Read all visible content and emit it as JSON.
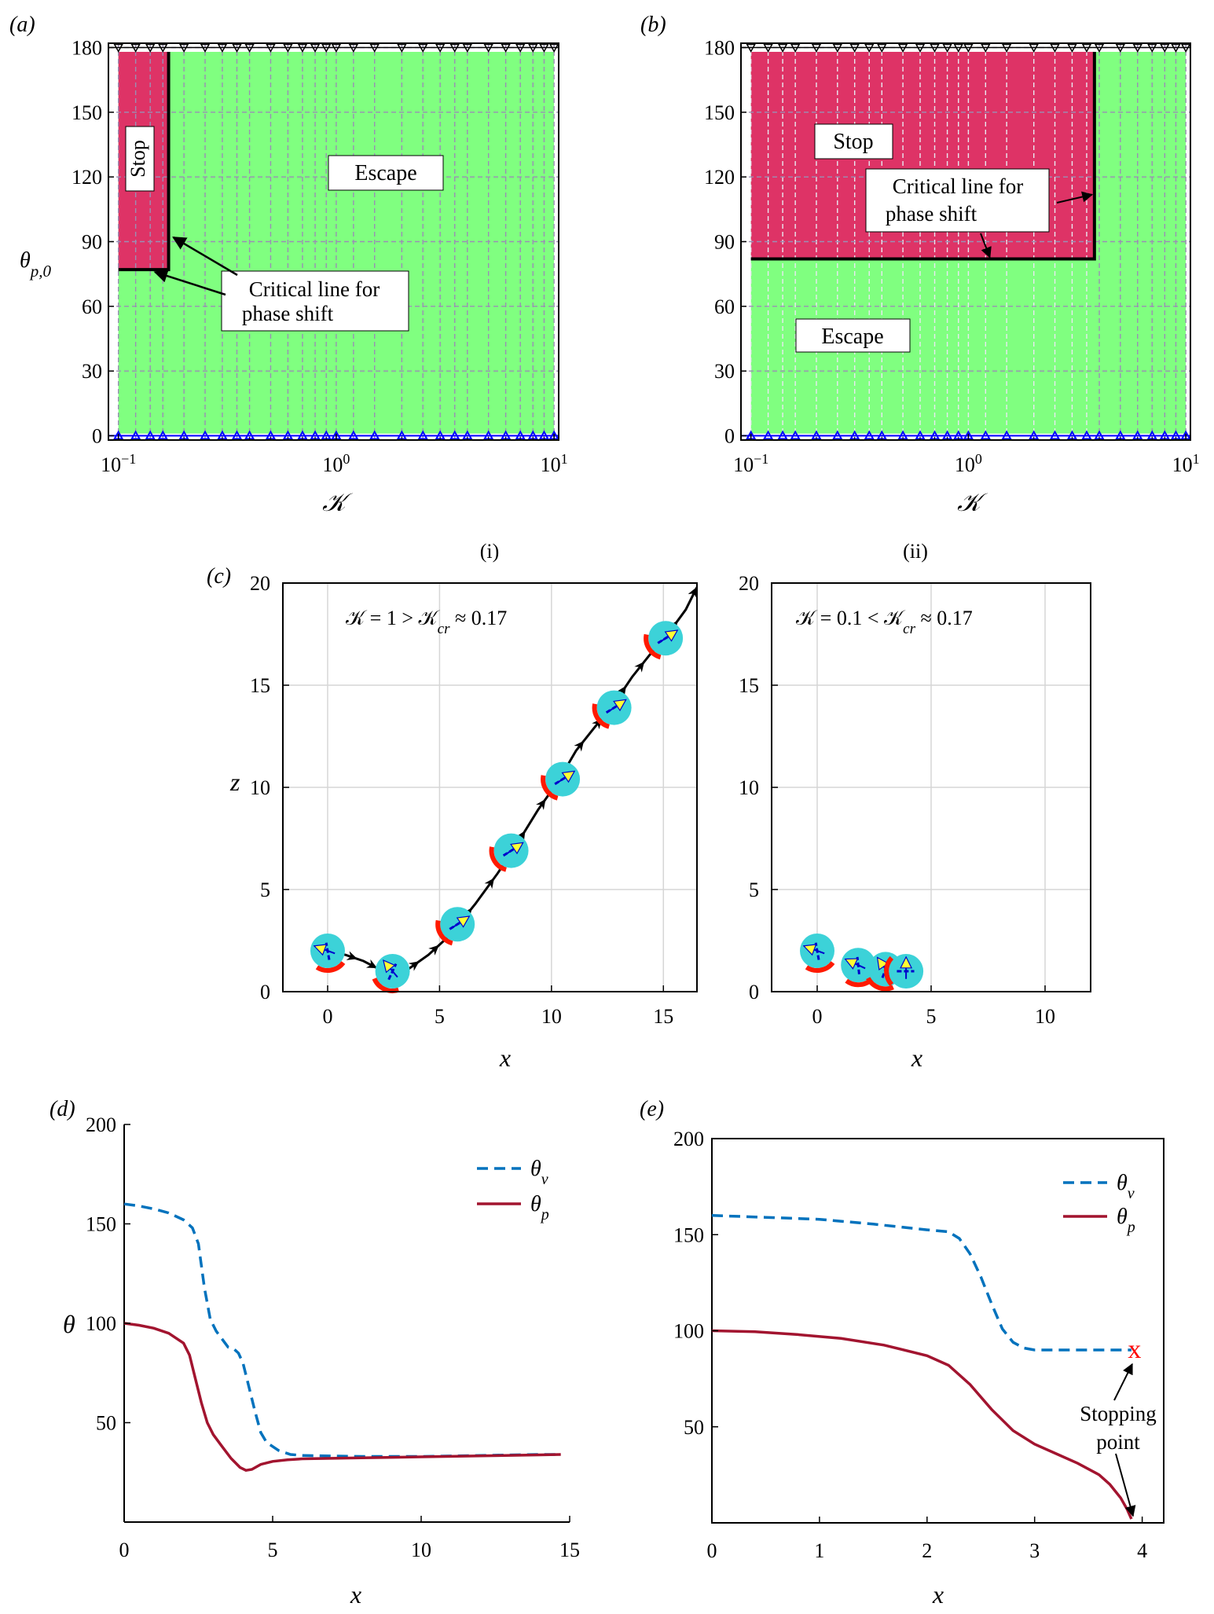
{
  "colors": {
    "stop": "#de3366",
    "escape": "#80ff80",
    "grid_dashed": "#9a8fb4",
    "particle": "#3cd2d8",
    "cap": "#ff1a00",
    "arrow_v": "#ffff33",
    "arrow_p": "#0000cc",
    "theta_v": "#0072bd",
    "theta_p": "#a2142f",
    "marker_red": "#ff0000",
    "triangle_top": "#000000",
    "triangle_bottom": "#0000ff"
  },
  "chart_data": [
    {
      "id": "a",
      "panel_label": "(a)",
      "type": "heatmap",
      "xscale": "log",
      "xlim": [
        0.09,
        10.5
      ],
      "ylim": [
        -2,
        182
      ],
      "xlabel": "𝒦",
      "ylabel": "θp,0",
      "xticks": [
        {
          "v": 0.1,
          "base": "10",
          "exp": "−1"
        },
        {
          "v": 1,
          "base": "10",
          "exp": "0"
        },
        {
          "v": 10,
          "base": "10",
          "exp": "1"
        }
      ],
      "yticks": [
        0,
        30,
        60,
        90,
        120,
        150,
        180
      ],
      "grid_x": [
        0.1,
        0.12,
        0.14,
        0.16,
        0.2,
        0.25,
        0.3,
        0.35,
        0.4,
        0.5,
        0.6,
        0.7,
        0.8,
        0.9,
        1,
        1.2,
        1.5,
        2,
        2.5,
        3,
        3.5,
        4,
        5,
        6,
        7,
        8,
        9,
        10
      ],
      "grid_y": [
        0,
        30,
        60,
        90,
        120,
        150,
        180
      ],
      "stop_region": {
        "k_min": 0.1,
        "k_max": 0.17,
        "theta_min": 77,
        "theta_max": 178
      },
      "critical_line": [
        [
          0.1,
          77
        ],
        [
          0.17,
          77
        ],
        [
          0.17,
          178
        ]
      ],
      "stop_label": "Stop",
      "stop_label_rotated": true,
      "escape_label": "Escape",
      "critical_label": [
        "Critical line for",
        "phase shift"
      ],
      "critical_arrow_targets": [
        [
          0.17,
          92
        ],
        [
          0.14,
          77
        ]
      ],
      "triangles_top_k": [
        0.1,
        0.12,
        0.14,
        0.16,
        0.2,
        0.25,
        0.3,
        0.35,
        0.4,
        0.5,
        0.6,
        0.7,
        0.8,
        0.9,
        1,
        1.2,
        1.5,
        2,
        2.5,
        3,
        3.5,
        4,
        5,
        6,
        7,
        8,
        9,
        10
      ],
      "triangles_bottom_k": [
        0.1,
        0.12,
        0.14,
        0.16,
        0.2,
        0.25,
        0.3,
        0.35,
        0.4,
        0.5,
        0.6,
        0.7,
        0.8,
        0.9,
        1,
        1.2,
        1.5,
        2,
        2.5,
        3,
        3.5,
        4,
        5,
        6,
        7,
        8,
        9,
        10
      ]
    },
    {
      "id": "b",
      "panel_label": "(b)",
      "type": "heatmap",
      "xscale": "log",
      "xlim": [
        0.09,
        10.5
      ],
      "ylim": [
        -2,
        182
      ],
      "xlabel": "𝒦",
      "ylabel": "",
      "xticks": [
        {
          "v": 0.1,
          "base": "10",
          "exp": "−1"
        },
        {
          "v": 1,
          "base": "10",
          "exp": "0"
        },
        {
          "v": 10,
          "base": "10",
          "exp": "1"
        }
      ],
      "yticks": [
        0,
        30,
        60,
        90,
        120,
        150,
        180
      ],
      "grid_x": [
        0.1,
        0.12,
        0.14,
        0.16,
        0.2,
        0.25,
        0.3,
        0.35,
        0.4,
        0.5,
        0.6,
        0.7,
        0.8,
        0.9,
        1,
        1.2,
        1.5,
        2,
        2.5,
        3,
        3.5,
        4,
        5,
        6,
        7,
        8,
        9,
        10
      ],
      "grid_y": [
        0,
        30,
        60,
        90,
        120,
        150,
        180
      ],
      "stop_region": {
        "k_min": 0.1,
        "k_max": 3.8,
        "theta_min": 82,
        "theta_max": 178
      },
      "critical_line": [
        [
          0.1,
          82
        ],
        [
          3.8,
          82
        ],
        [
          3.8,
          178
        ]
      ],
      "stop_label": "Stop",
      "stop_label_rotated": false,
      "escape_label": "Escape",
      "critical_label": [
        "Critical line for",
        "phase shift"
      ],
      "critical_arrow_targets": [
        [
          3.8,
          114
        ],
        [
          0.9,
          82
        ]
      ],
      "triangles_top_k": [
        0.1,
        0.12,
        0.14,
        0.16,
        0.2,
        0.25,
        0.3,
        0.35,
        0.4,
        0.5,
        0.6,
        0.7,
        0.8,
        0.9,
        1,
        1.2,
        1.5,
        2,
        2.5,
        3,
        3.5,
        4,
        5,
        6,
        7,
        8,
        9,
        10
      ],
      "triangles_bottom_k": [
        0.1,
        0.12,
        0.14,
        0.16,
        0.2,
        0.25,
        0.3,
        0.35,
        0.4,
        0.5,
        0.6,
        0.7,
        0.8,
        0.9,
        1,
        1.2,
        1.5,
        2,
        2.5,
        3,
        3.5,
        4,
        5,
        6,
        7,
        8,
        9,
        10
      ]
    },
    {
      "id": "c_i",
      "panel_label": "(c)",
      "subtitle": "(i)",
      "type": "scatter",
      "xlim": [
        -2,
        16.5
      ],
      "ylim": [
        0,
        20
      ],
      "xlabel": "x",
      "ylabel": "z",
      "xticks": [
        0,
        5,
        10,
        15
      ],
      "yticks": [
        0,
        5,
        10,
        15,
        20
      ],
      "annotation": "𝒦 = 1 > 𝒦cr ≈ 0.17",
      "trajectory": [
        [
          0,
          2.0
        ],
        [
          0.8,
          1.8
        ],
        [
          1.6,
          1.5
        ],
        [
          2.3,
          1.1
        ],
        [
          2.9,
          0.9
        ],
        [
          3.6,
          1.1
        ],
        [
          4.5,
          1.8
        ],
        [
          5.5,
          2.8
        ],
        [
          6.6,
          4.3
        ],
        [
          7.6,
          5.8
        ],
        [
          8.5,
          7.3
        ],
        [
          9.4,
          8.9
        ],
        [
          10.3,
          10.3
        ],
        [
          11.1,
          11.8
        ],
        [
          11.9,
          12.9
        ],
        [
          12.8,
          14.1
        ],
        [
          13.6,
          15.4
        ],
        [
          14.4,
          16.5
        ],
        [
          15.2,
          17.5
        ],
        [
          16.0,
          18.7
        ],
        [
          16.5,
          19.8
        ]
      ],
      "trajectory_arrow_x": [
        1.1,
        2.0,
        3.9,
        4.8,
        6.3,
        7.3,
        8.7,
        9.6,
        11.3,
        12.1,
        13.2,
        14.0,
        15.5,
        16.4
      ],
      "particles": [
        {
          "x": 0,
          "z": 2.0,
          "theta_v": 160,
          "theta_p": 100
        },
        {
          "x": 2.9,
          "z": 1.0,
          "theta_v": 130,
          "theta_p": 65
        },
        {
          "x": 5.8,
          "z": 3.3,
          "theta_v": 34,
          "theta_p": 32
        },
        {
          "x": 8.2,
          "z": 6.9,
          "theta_v": 34,
          "theta_p": 32
        },
        {
          "x": 10.5,
          "z": 10.4,
          "theta_v": 34,
          "theta_p": 32
        },
        {
          "x": 12.8,
          "z": 13.9,
          "theta_v": 34,
          "theta_p": 32
        },
        {
          "x": 15.1,
          "z": 17.3,
          "theta_v": 34,
          "theta_p": 32
        }
      ]
    },
    {
      "id": "c_ii",
      "panel_label": "",
      "subtitle": "(ii)",
      "type": "scatter",
      "xlim": [
        -2,
        12
      ],
      "ylim": [
        0,
        20
      ],
      "xlabel": "x",
      "ylabel": "",
      "xticks": [
        0,
        5,
        10
      ],
      "yticks": [
        0,
        5,
        10,
        15,
        20
      ],
      "annotation": "𝒦 = 0.1 < 𝒦cr ≈ 0.17",
      "particles": [
        {
          "x": 0,
          "z": 2.0,
          "theta_v": 160,
          "theta_p": 100
        },
        {
          "x": 1.8,
          "z": 1.3,
          "theta_v": 155,
          "theta_p": 96
        },
        {
          "x": 3.0,
          "z": 1.1,
          "theta_v": 125,
          "theta_p": 70
        },
        {
          "x": 3.9,
          "z": 1.0,
          "theta_v": 90,
          "theta_p": 0
        }
      ]
    },
    {
      "id": "d",
      "panel_label": "(d)",
      "type": "line",
      "xlim": [
        0,
        15
      ],
      "ylim": [
        0,
        200
      ],
      "xlabel": "x",
      "ylabel": "θ",
      "xticks": [
        0,
        5,
        10,
        15
      ],
      "yticks": [
        50,
        100,
        150,
        200
      ],
      "legend": [
        "θv",
        "θp"
      ],
      "series": [
        {
          "name": "theta_v",
          "style": "dashed",
          "points": [
            [
              0,
              160
            ],
            [
              0.5,
              159
            ],
            [
              1,
              157.5
            ],
            [
              1.5,
              155.5
            ],
            [
              2,
              152
            ],
            [
              2.3,
              148
            ],
            [
              2.5,
              140
            ],
            [
              2.7,
              118
            ],
            [
              2.9,
              102
            ],
            [
              3.1,
              96
            ],
            [
              3.3,
              92
            ],
            [
              3.5,
              88
            ],
            [
              3.7,
              87
            ],
            [
              3.85,
              85
            ],
            [
              4.0,
              80
            ],
            [
              4.2,
              68
            ],
            [
              4.4,
              56
            ],
            [
              4.6,
              45
            ],
            [
              4.8,
              40
            ],
            [
              5.2,
              36
            ],
            [
              5.6,
              34
            ],
            [
              6,
              33.5
            ],
            [
              8,
              33
            ],
            [
              10,
              33
            ],
            [
              12,
              33.5
            ],
            [
              14,
              34
            ],
            [
              14.7,
              34
            ]
          ]
        },
        {
          "name": "theta_p",
          "style": "solid",
          "points": [
            [
              0,
              100
            ],
            [
              0.5,
              99
            ],
            [
              1,
              97.5
            ],
            [
              1.5,
              95
            ],
            [
              2,
              90
            ],
            [
              2.2,
              84
            ],
            [
              2.4,
              72
            ],
            [
              2.6,
              60
            ],
            [
              2.8,
              50
            ],
            [
              3,
              44
            ],
            [
              3.3,
              38
            ],
            [
              3.6,
              32
            ],
            [
              3.9,
              27.5
            ],
            [
              4.1,
              26
            ],
            [
              4.3,
              26.5
            ],
            [
              4.6,
              29
            ],
            [
              5,
              30.5
            ],
            [
              5.5,
              31.3
            ],
            [
              6,
              31.8
            ],
            [
              8,
              32.3
            ],
            [
              10,
              32.8
            ],
            [
              12,
              33.3
            ],
            [
              14,
              33.8
            ],
            [
              14.7,
              34
            ]
          ]
        }
      ]
    },
    {
      "id": "e",
      "panel_label": "(e)",
      "type": "line",
      "xlim": [
        0,
        4.2
      ],
      "ylim": [
        0,
        200
      ],
      "xlabel": "x",
      "ylabel": "",
      "xticks": [
        0,
        1,
        2,
        3,
        4
      ],
      "yticks": [
        50,
        100,
        150,
        200
      ],
      "legend": [
        "θv",
        "θp"
      ],
      "stop_marker": {
        "x": 3.9,
        "y": 90,
        "label": "x"
      },
      "annotation": [
        "Stopping",
        "point"
      ],
      "series": [
        {
          "name": "theta_v",
          "style": "dashed",
          "points": [
            [
              0,
              160
            ],
            [
              0.5,
              159
            ],
            [
              1,
              158
            ],
            [
              1.5,
              155.5
            ],
            [
              2,
              152.5
            ],
            [
              2.2,
              151.5
            ],
            [
              2.3,
              148
            ],
            [
              2.4,
              140
            ],
            [
              2.5,
              128
            ],
            [
              2.6,
              114
            ],
            [
              2.7,
              101
            ],
            [
              2.8,
              94
            ],
            [
              2.9,
              91
            ],
            [
              3.0,
              90
            ],
            [
              3.3,
              90
            ],
            [
              3.6,
              90
            ],
            [
              3.9,
              90
            ]
          ]
        },
        {
          "name": "theta_p",
          "style": "solid",
          "points": [
            [
              0,
              100
            ],
            [
              0.4,
              99.5
            ],
            [
              0.8,
              98
            ],
            [
              1.2,
              96
            ],
            [
              1.6,
              92.5
            ],
            [
              2.0,
              87
            ],
            [
              2.2,
              82
            ],
            [
              2.4,
              72
            ],
            [
              2.6,
              59
            ],
            [
              2.8,
              48
            ],
            [
              3.0,
              41
            ],
            [
              3.2,
              36
            ],
            [
              3.4,
              31
            ],
            [
              3.6,
              25
            ],
            [
              3.7,
              20
            ],
            [
              3.8,
              13
            ],
            [
              3.86,
              7
            ],
            [
              3.9,
              2
            ]
          ]
        }
      ]
    }
  ]
}
